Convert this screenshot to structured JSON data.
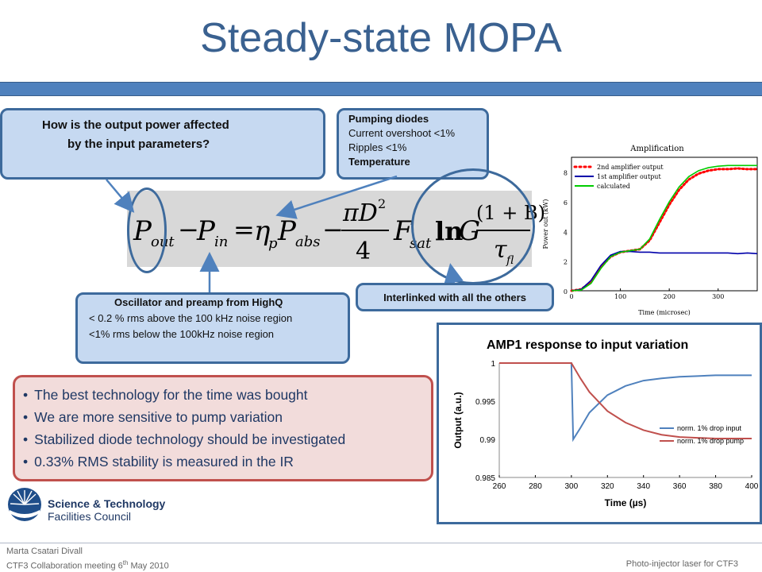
{
  "slide": {
    "title": "Steady-state MOPA"
  },
  "callouts": {
    "question": {
      "line1": "How is the output power affected",
      "line2": "by the input parameters?"
    },
    "pumping": {
      "heading": "Pumping diodes",
      "lines": [
        "Current overshoot <1%",
        "Ripples <1%"
      ],
      "bold_line": "Temperature"
    },
    "oscillator": {
      "heading": "Oscillator  and preamp from HighQ",
      "lines": [
        "< 0.2 % rms above the 100 kHz noise region",
        "<1% rms below the 100kHz noise region"
      ]
    },
    "interlinked": "Interlinked with all the others"
  },
  "equation": {
    "p_out": "P",
    "out_sub": "out",
    "minus": "−",
    "p_in": "P",
    "in_sub": "in",
    "equals": "=",
    "eta": "η",
    "eta_sub": "p",
    "p_abs": "P",
    "abs_sub": "abs",
    "frac_num": "πD",
    "frac_exp": "2",
    "frac_den": "4",
    "f_sat": "F",
    "sat_sub": "sat",
    "ln": "ln",
    "g": "G",
    "b_num": "(1 + B)",
    "tau": "τ",
    "tau_sub": "fl"
  },
  "bullets": [
    "The best technology for the time was bought",
    "We are more sensitive to pump variation",
    "Stabilized diode technology should be investigated",
    "0.33% RMS stability is measured in the IR"
  ],
  "footer": {
    "author": "Marta Csatari Divall",
    "meeting_prefix": "CTF3 Collaboration meeting 6",
    "meeting_sup": "th",
    "meeting_suffix": " May 2010",
    "right": "Photo-injector laser for CTF3",
    "logo_line1": "Science & Technology",
    "logo_line2": "Facilities Council"
  },
  "chart_data": [
    {
      "type": "line",
      "title": "Amplification",
      "xlabel": "Time (microsec)",
      "ylabel": "Power out (kW)",
      "xlim": [
        0,
        380
      ],
      "ylim": [
        0,
        9
      ],
      "xticks": [
        0,
        100,
        200,
        300
      ],
      "yticks": [
        0,
        2,
        4,
        6,
        8
      ],
      "legend_position": "top-left",
      "series": [
        {
          "name": "2nd amplifier output",
          "color": "#ff0000",
          "style": "dotted",
          "x": [
            0,
            20,
            40,
            60,
            80,
            100,
            120,
            140,
            160,
            180,
            200,
            220,
            240,
            260,
            280,
            300,
            320,
            340,
            360,
            380
          ],
          "y": [
            0,
            0.1,
            0.6,
            1.6,
            2.3,
            2.6,
            2.7,
            2.8,
            3.4,
            4.6,
            5.8,
            6.8,
            7.5,
            7.9,
            8.1,
            8.2,
            8.2,
            8.25,
            8.2,
            8.2
          ]
        },
        {
          "name": "1st amplifier output",
          "color": "#0000aa",
          "style": "solid",
          "x": [
            0,
            20,
            40,
            60,
            80,
            100,
            120,
            140,
            160,
            180,
            200,
            220,
            240,
            260,
            280,
            300,
            320,
            340,
            360,
            380
          ],
          "y": [
            0,
            0.1,
            0.7,
            1.7,
            2.4,
            2.65,
            2.65,
            2.6,
            2.6,
            2.55,
            2.55,
            2.55,
            2.55,
            2.55,
            2.55,
            2.55,
            2.55,
            2.5,
            2.55,
            2.5
          ]
        },
        {
          "name": "calculated",
          "color": "#00cc00",
          "style": "solid",
          "x": [
            0,
            20,
            40,
            60,
            80,
            100,
            120,
            140,
            160,
            180,
            200,
            220,
            240,
            260,
            280,
            300,
            320,
            340,
            360,
            380
          ],
          "y": [
            0,
            0.05,
            0.5,
            1.5,
            2.3,
            2.6,
            2.7,
            2.8,
            3.5,
            4.8,
            6.0,
            7.0,
            7.7,
            8.1,
            8.3,
            8.4,
            8.45,
            8.45,
            8.45,
            8.45
          ]
        }
      ]
    },
    {
      "type": "line",
      "title": "AMP1 response to input variation",
      "xlabel": "Time (µs)",
      "ylabel": "Output (a.u.)",
      "xlim": [
        260,
        400
      ],
      "ylim": [
        0.985,
        1
      ],
      "xticks": [
        260,
        280,
        300,
        320,
        340,
        360,
        380,
        400
      ],
      "yticks": [
        0.985,
        0.99,
        0.995,
        1
      ],
      "legend_position": "right",
      "series": [
        {
          "name": "norm. 1% drop input",
          "color": "#4f81bd",
          "x": [
            260,
            300,
            301,
            305,
            310,
            320,
            330,
            340,
            350,
            360,
            370,
            380,
            400
          ],
          "y": [
            1,
            1,
            0.99,
            0.9915,
            0.9935,
            0.9958,
            0.997,
            0.9977,
            0.998,
            0.9982,
            0.9983,
            0.9984,
            0.9984
          ]
        },
        {
          "name": "norm. 1% drop pump",
          "color": "#c0504d",
          "x": [
            260,
            300,
            305,
            310,
            320,
            330,
            340,
            350,
            360,
            370,
            380,
            400
          ],
          "y": [
            1,
            1,
            0.998,
            0.9962,
            0.9937,
            0.9922,
            0.9912,
            0.9906,
            0.9903,
            0.9902,
            0.9901,
            0.9901
          ]
        }
      ]
    }
  ]
}
